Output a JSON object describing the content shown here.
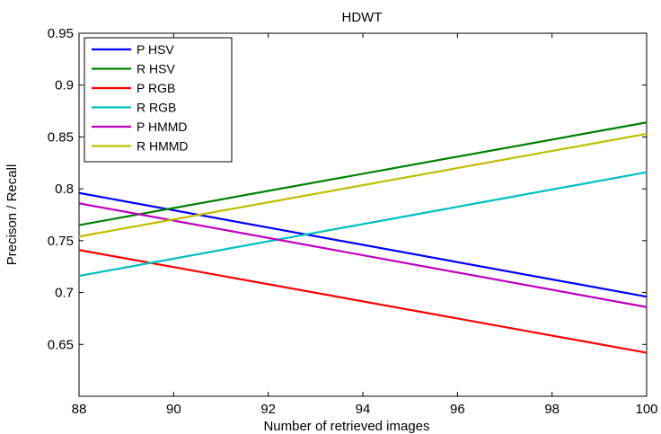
{
  "chart_data": {
    "type": "line",
    "title": "HDWT",
    "xlabel": "Number of retrieved images",
    "ylabel": "Precison / Recall",
    "xlim": [
      88,
      100
    ],
    "ylim": [
      0.6,
      0.95
    ],
    "xticks": [
      "88",
      "90",
      "92",
      "94",
      "96",
      "98",
      "100"
    ],
    "yticks": [
      "0.65",
      "0.7",
      "0.75",
      "0.8",
      "0.85",
      "0.9",
      "0.95"
    ],
    "x": [
      88,
      100
    ],
    "grid": false,
    "legend_position": "top-left",
    "series": [
      {
        "name": "P HSV",
        "color": "#0000ff",
        "values": [
          0.796,
          0.696
        ]
      },
      {
        "name": "R HSV",
        "color": "#008000",
        "values": [
          0.765,
          0.864
        ]
      },
      {
        "name": "P RGB",
        "color": "#ff0000",
        "values": [
          0.741,
          0.642
        ]
      },
      {
        "name": "R RGB",
        "color": "#00bfbf",
        "values": [
          0.716,
          0.816
        ]
      },
      {
        "name": "P HMMD",
        "color": "#bf00bf",
        "values": [
          0.786,
          0.686
        ]
      },
      {
        "name": "R HMMD",
        "color": "#bfbf00",
        "values": [
          0.754,
          0.853
        ]
      }
    ]
  }
}
